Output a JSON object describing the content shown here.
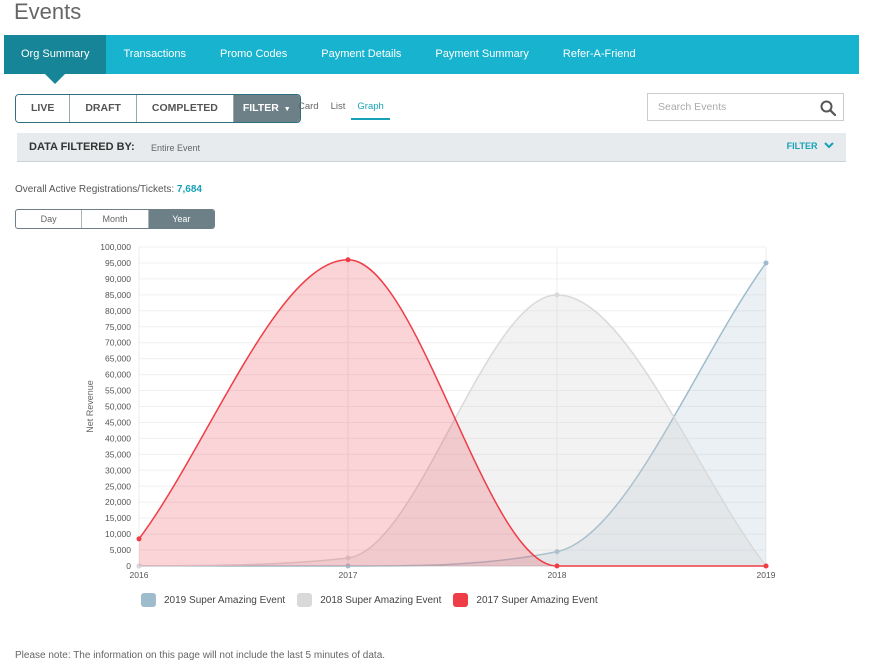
{
  "page": {
    "title": "Events"
  },
  "nav": {
    "tabs": [
      {
        "label": "Org Summary",
        "active": true
      },
      {
        "label": "Transactions"
      },
      {
        "label": "Promo Codes"
      },
      {
        "label": "Payment Details"
      },
      {
        "label": "Payment Summary"
      },
      {
        "label": "Refer-A-Friend"
      }
    ]
  },
  "status_filters": [
    "LIVE",
    "DRAFT",
    "COMPLETED"
  ],
  "filter_button": "FILTER",
  "view_options": [
    "Card",
    "List",
    "Graph"
  ],
  "active_view": "Graph",
  "search": {
    "placeholder": "Search Events"
  },
  "filter_bar": {
    "label": "DATA FILTERED BY:",
    "value": "Entire Event",
    "link": "FILTER"
  },
  "overall": {
    "label": "Overall Active Registrations/Tickets:",
    "value": "7,684"
  },
  "periods": [
    "Day",
    "Month",
    "Year"
  ],
  "active_period": "Year",
  "colors": {
    "accent": "#17b3cf",
    "accent_dark": "#168597"
  },
  "chart_data": {
    "type": "area",
    "x": [
      "2016",
      "2017",
      "2018",
      "2019"
    ],
    "ylabel": "Net Revenue",
    "ylim": [
      0,
      100000
    ],
    "yticks": [
      "0",
      "5,000",
      "10,000",
      "15,000",
      "20,000",
      "25,000",
      "30,000",
      "35,000",
      "40,000",
      "45,000",
      "50,000",
      "55,000",
      "60,000",
      "65,000",
      "70,000",
      "75,000",
      "80,000",
      "85,000",
      "90,000",
      "95,000",
      "100,000"
    ],
    "grid": true,
    "legend": "bottom",
    "series": [
      {
        "name": "2019 Super Amazing Event",
        "values": [
          0,
          0,
          4500,
          95000
        ],
        "color": "#9fbccc"
      },
      {
        "name": "2018 Super Amazing Event",
        "values": [
          0,
          2500,
          85000,
          0
        ],
        "color": "#d9d9d9"
      },
      {
        "name": "2017 Super Amazing Event",
        "values": [
          8500,
          96000,
          0,
          0
        ],
        "color": "#ef3d47"
      }
    ]
  },
  "footer_note": "Please note: The information on this page will not include the last 5 minutes of data."
}
